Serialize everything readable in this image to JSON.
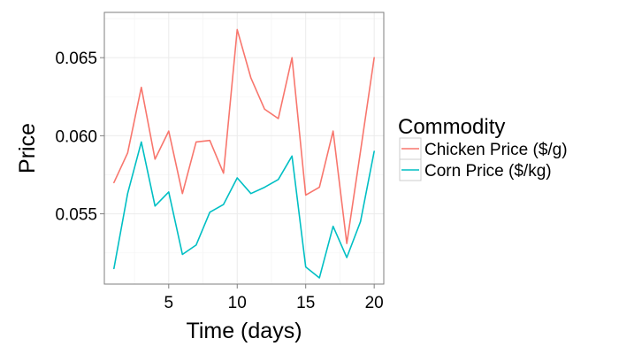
{
  "chart_data": {
    "type": "line",
    "xlabel": "Time (days)",
    "ylabel": "Price",
    "x": [
      1,
      2,
      3,
      4,
      5,
      6,
      7,
      8,
      9,
      10,
      11,
      12,
      13,
      14,
      15,
      16,
      17,
      18,
      19,
      20
    ],
    "xlim": [
      0.3,
      20.7
    ],
    "ylim": [
      0.0505,
      0.0679
    ],
    "x_ticks": [
      5,
      10,
      15,
      20
    ],
    "y_ticks": [
      0.055,
      0.06,
      0.065
    ],
    "x_tick_labels": [
      "5",
      "10",
      "15",
      "20"
    ],
    "y_tick_labels": [
      "0.055",
      "0.060",
      "0.065"
    ],
    "grid": true,
    "legend": {
      "title": "Commodity",
      "position": "right"
    },
    "series": [
      {
        "name": "Chicken Price ($/g)",
        "color": "#f8766d",
        "values": [
          0.057,
          0.0589,
          0.0631,
          0.0585,
          0.0603,
          0.0563,
          0.0596,
          0.0597,
          0.0576,
          0.0668,
          0.0637,
          0.0617,
          0.0611,
          0.065,
          0.0562,
          0.0567,
          0.0603,
          0.0531,
          0.059,
          0.065
        ]
      },
      {
        "name": "Corn Price ($/kg)",
        "color": "#00bfc4",
        "values": [
          0.0515,
          0.0563,
          0.0596,
          0.0555,
          0.0564,
          0.0524,
          0.053,
          0.0551,
          0.0556,
          0.0573,
          0.0563,
          0.0567,
          0.0572,
          0.0587,
          0.0516,
          0.0509,
          0.0542,
          0.0522,
          0.0545,
          0.059
        ]
      }
    ]
  }
}
